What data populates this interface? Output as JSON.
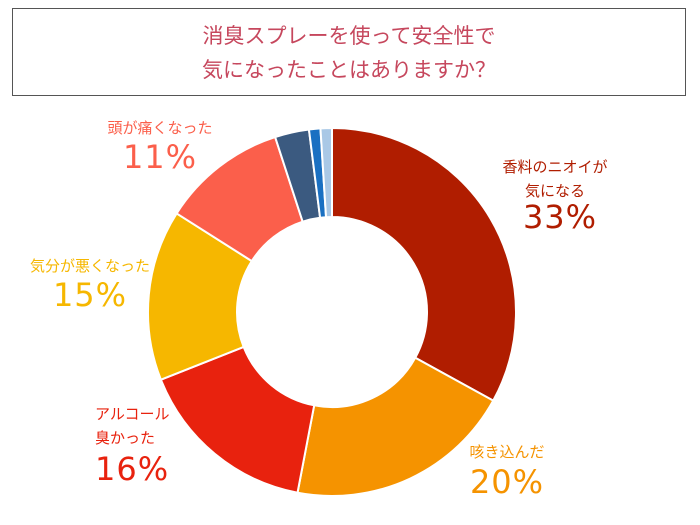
{
  "chart_data": {
    "type": "pie",
    "donut": true,
    "title": "消臭スプレーを使って安全性で\n気になったことはありますか？",
    "categories": [
      "香料のニオイが\n気になる",
      "咳き込んだ",
      "アルコール\n臭かった",
      "気分が悪くなった",
      "頭が痛くなった",
      null,
      null,
      null
    ],
    "values": [
      33,
      20,
      16,
      15,
      11,
      3,
      1,
      1
    ],
    "value_labels": [
      "33%",
      "20%",
      "16%",
      "15%",
      "11%",
      null,
      null,
      null
    ],
    "colors": [
      "#b01d00",
      "#f59300",
      "#e8220e",
      "#f6b700",
      "#fb5f4b",
      "#3b5a80",
      "#1a70c2",
      "#a9c8e6"
    ]
  }
}
